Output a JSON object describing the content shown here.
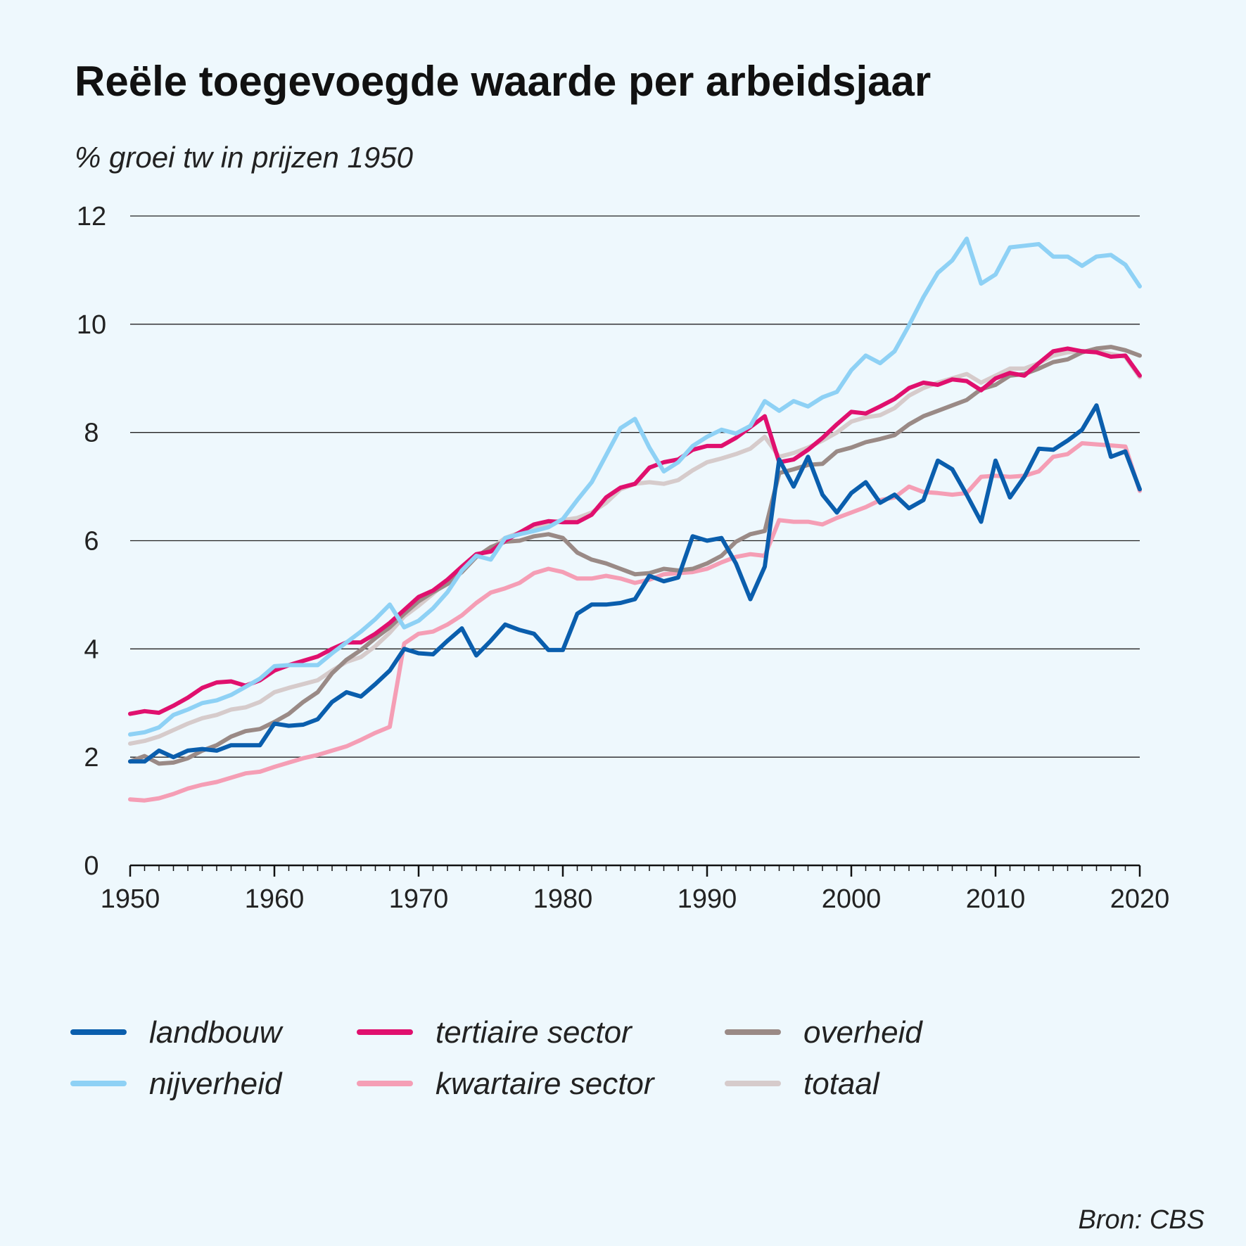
{
  "chart_data": {
    "type": "line",
    "title": "Reële toegevoegde waarde per arbeidsjaar",
    "subtitle": "% groei tw in prijzen 1950",
    "xlabel": "",
    "ylabel": "",
    "xlim": [
      1950,
      2020
    ],
    "ylim": [
      0,
      12
    ],
    "grid": true,
    "x_ticks": [
      1950,
      1960,
      1970,
      1980,
      1990,
      2000,
      2010,
      2020
    ],
    "y_ticks": [
      0,
      2,
      4,
      6,
      8,
      10,
      12
    ],
    "x_tick_labels": [
      "1950",
      "1960",
      "1970",
      "1980",
      "1990",
      "2000",
      "2010",
      "2020"
    ],
    "y_tick_labels": [
      "0",
      "2",
      "4",
      "6",
      "8",
      "10",
      "12"
    ],
    "legend_position": "bottom",
    "source": "Bron: CBS",
    "x": [
      1950,
      1951,
      1952,
      1953,
      1954,
      1955,
      1956,
      1957,
      1958,
      1959,
      1960,
      1961,
      1962,
      1963,
      1964,
      1965,
      1966,
      1967,
      1968,
      1969,
      1970,
      1971,
      1972,
      1973,
      1974,
      1975,
      1976,
      1977,
      1978,
      1979,
      1980,
      1981,
      1982,
      1983,
      1984,
      1985,
      1986,
      1987,
      1988,
      1989,
      1990,
      1991,
      1992,
      1993,
      1994,
      1995,
      1996,
      1997,
      1998,
      1999,
      2000,
      2001,
      2002,
      2003,
      2004,
      2005,
      2006,
      2007,
      2008,
      2009,
      2010,
      2011,
      2012,
      2013,
      2014,
      2015,
      2016,
      2017,
      2018,
      2019,
      2020
    ],
    "series": [
      {
        "name": "kwartaire sector",
        "color": "#f59eb5",
        "values": [
          1.22,
          1.2,
          1.24,
          1.32,
          1.42,
          1.49,
          1.54,
          1.62,
          1.7,
          1.73,
          1.82,
          1.9,
          1.98,
          2.04,
          2.12,
          2.2,
          2.32,
          2.45,
          2.56,
          4.1,
          4.28,
          4.32,
          4.45,
          4.62,
          4.85,
          5.04,
          5.12,
          5.22,
          5.4,
          5.48,
          5.42,
          5.3,
          5.3,
          5.35,
          5.3,
          5.22,
          5.28,
          5.38,
          5.4,
          5.42,
          5.48,
          5.6,
          5.7,
          5.75,
          5.72,
          6.38,
          6.35,
          6.35,
          6.3,
          6.42,
          6.52,
          6.62,
          6.75,
          6.8,
          7.0,
          6.9,
          6.88,
          6.85,
          6.88,
          7.18,
          7.2,
          7.18,
          7.2,
          7.28,
          7.55,
          7.6,
          7.8,
          7.78,
          7.76,
          7.74,
          6.92
        ]
      },
      {
        "name": "totaal",
        "color": "#d6cbcb",
        "values": [
          2.25,
          2.3,
          2.38,
          2.5,
          2.62,
          2.72,
          2.78,
          2.88,
          2.92,
          3.02,
          3.2,
          3.28,
          3.35,
          3.42,
          3.6,
          3.76,
          3.85,
          4.05,
          4.3,
          4.6,
          4.8,
          5.02,
          5.25,
          5.5,
          5.72,
          5.85,
          6.05,
          6.15,
          6.25,
          6.32,
          6.38,
          6.42,
          6.52,
          6.7,
          6.95,
          7.05,
          7.08,
          7.05,
          7.12,
          7.3,
          7.45,
          7.52,
          7.6,
          7.7,
          7.92,
          7.55,
          7.62,
          7.72,
          7.85,
          8.0,
          8.2,
          8.28,
          8.32,
          8.45,
          8.68,
          8.82,
          8.92,
          9.0,
          9.08,
          8.92,
          9.05,
          9.18,
          9.18,
          9.28,
          9.42,
          9.48,
          9.5,
          9.5,
          9.45,
          9.4,
          9.02
        ]
      },
      {
        "name": "overheid",
        "color": "#9a8a86",
        "values": [
          1.92,
          2.02,
          1.88,
          1.9,
          1.98,
          2.12,
          2.22,
          2.38,
          2.48,
          2.52,
          2.65,
          2.8,
          3.02,
          3.2,
          3.55,
          3.8,
          3.98,
          4.2,
          4.4,
          4.65,
          4.88,
          5.05,
          5.2,
          5.42,
          5.7,
          5.88,
          5.98,
          6.0,
          6.08,
          6.12,
          6.05,
          5.78,
          5.65,
          5.58,
          5.48,
          5.38,
          5.4,
          5.48,
          5.45,
          5.48,
          5.58,
          5.72,
          5.98,
          6.12,
          6.18,
          7.25,
          7.32,
          7.4,
          7.42,
          7.65,
          7.72,
          7.82,
          7.88,
          7.95,
          8.15,
          8.3,
          8.4,
          8.5,
          8.6,
          8.8,
          8.88,
          9.05,
          9.08,
          9.18,
          9.3,
          9.35,
          9.48,
          9.55,
          9.58,
          9.52,
          9.42
        ]
      },
      {
        "name": "tertiaire sector",
        "color": "#e0106e",
        "values": [
          2.8,
          2.85,
          2.82,
          2.95,
          3.1,
          3.28,
          3.38,
          3.4,
          3.32,
          3.42,
          3.6,
          3.7,
          3.78,
          3.86,
          4.0,
          4.12,
          4.12,
          4.28,
          4.48,
          4.72,
          4.96,
          5.08,
          5.28,
          5.52,
          5.75,
          5.8,
          6.0,
          6.15,
          6.3,
          6.36,
          6.34,
          6.34,
          6.48,
          6.8,
          6.98,
          7.05,
          7.35,
          7.45,
          7.5,
          7.68,
          7.75,
          7.75,
          7.9,
          8.1,
          8.3,
          7.45,
          7.5,
          7.68,
          7.9,
          8.15,
          8.38,
          8.35,
          8.48,
          8.62,
          8.82,
          8.92,
          8.88,
          8.98,
          8.95,
          8.78,
          9.0,
          9.1,
          9.05,
          9.28,
          9.5,
          9.55,
          9.5,
          9.48,
          9.4,
          9.42,
          9.05
        ]
      },
      {
        "name": "nijverheid",
        "color": "#8ed1f5",
        "values": [
          2.42,
          2.46,
          2.55,
          2.78,
          2.88,
          3.0,
          3.05,
          3.15,
          3.3,
          3.45,
          3.68,
          3.7,
          3.7,
          3.7,
          3.92,
          4.12,
          4.32,
          4.55,
          4.82,
          4.4,
          4.52,
          4.75,
          5.05,
          5.45,
          5.72,
          5.65,
          6.05,
          6.12,
          6.18,
          6.25,
          6.4,
          6.75,
          7.08,
          7.58,
          8.08,
          8.25,
          7.72,
          7.28,
          7.45,
          7.75,
          7.92,
          8.05,
          7.98,
          8.12,
          8.58,
          8.4,
          8.58,
          8.48,
          8.65,
          8.75,
          9.15,
          9.42,
          9.28,
          9.5,
          9.98,
          10.5,
          10.95,
          11.18,
          11.58,
          10.75,
          10.92,
          11.42,
          11.45,
          11.48,
          11.25,
          11.25,
          11.08,
          11.25,
          11.28,
          11.1,
          10.7
        ]
      },
      {
        "name": "landbouw",
        "color": "#0a5ead",
        "values": [
          1.92,
          1.92,
          2.12,
          2.0,
          2.12,
          2.15,
          2.12,
          2.22,
          2.22,
          2.22,
          2.62,
          2.58,
          2.6,
          2.7,
          3.02,
          3.2,
          3.12,
          3.35,
          3.6,
          4.0,
          3.92,
          3.9,
          4.15,
          4.38,
          3.88,
          4.15,
          4.45,
          4.35,
          4.28,
          3.98,
          3.98,
          4.65,
          4.82,
          4.82,
          4.85,
          4.92,
          5.35,
          5.25,
          5.32,
          6.08,
          6.0,
          6.05,
          5.58,
          4.92,
          5.52,
          7.5,
          7.0,
          7.55,
          6.85,
          6.52,
          6.88,
          7.08,
          6.7,
          6.85,
          6.6,
          6.75,
          7.48,
          7.32,
          6.85,
          6.35,
          7.48,
          6.8,
          7.18,
          7.7,
          7.68,
          7.85,
          8.05,
          8.5,
          7.55,
          7.65,
          6.95
        ]
      }
    ],
    "legend": [
      {
        "name": "landbouw",
        "color": "#0a5ead"
      },
      {
        "name": "nijverheid",
        "color": "#8ed1f5"
      },
      {
        "name": "tertiaire sector",
        "color": "#e0106e"
      },
      {
        "name": "kwartaire sector",
        "color": "#f59eb5"
      },
      {
        "name": "overheid",
        "color": "#9a8a86"
      },
      {
        "name": "totaal",
        "color": "#d6cbcb"
      }
    ]
  },
  "colors": {
    "background": "#eef8fd",
    "gridline": "#222222",
    "axis": "#111111",
    "text": "#111111"
  }
}
